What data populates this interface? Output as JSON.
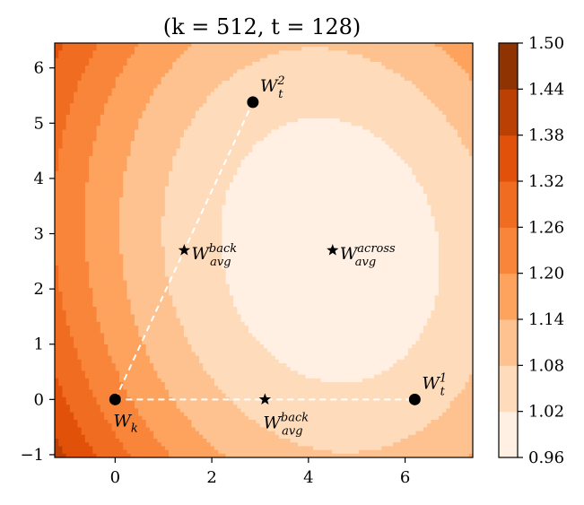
{
  "chart_data": {
    "type": "contour",
    "title": "(k = 512, t = 128)",
    "xlim": [
      -1.25,
      7.4
    ],
    "ylim": [
      -1.05,
      6.45
    ],
    "xticks": [
      0,
      2,
      4,
      6
    ],
    "yticks": [
      -1,
      0,
      1,
      2,
      3,
      4,
      5,
      6
    ],
    "colorbar": {
      "levels": [
        0.96,
        1.02,
        1.08,
        1.14,
        1.2,
        1.26,
        1.32,
        1.38,
        1.44,
        1.5
      ],
      "tick_labels": [
        "0.96",
        "1.02",
        "1.08",
        "1.14",
        "1.20",
        "1.26",
        "1.32",
        "1.38",
        "1.44",
        "1.50"
      ],
      "colors": [
        "#fff0e3",
        "#fedcbb",
        "#fdc28f",
        "#fda35e",
        "#f8853a",
        "#f06c21",
        "#e25109",
        "#ba4003",
        "#8f3303"
      ]
    },
    "minimum_center": [
      4.45,
      2.7
    ],
    "points": [
      {
        "id": "Wk",
        "x": 0,
        "y": 0,
        "marker": "circle",
        "label": "W",
        "sub": "k",
        "sup": ""
      },
      {
        "id": "Wt1",
        "x": 6.2,
        "y": 0,
        "marker": "circle",
        "label": "W",
        "sub": "t",
        "sup": "1"
      },
      {
        "id": "Wt2",
        "x": 2.85,
        "y": 5.38,
        "marker": "circle",
        "label": "W",
        "sub": "t",
        "sup": "2"
      },
      {
        "id": "Wavg_back_x",
        "x": 3.1,
        "y": 0,
        "marker": "star",
        "label": "W",
        "sub": "avg",
        "sup": "back"
      },
      {
        "id": "Wavg_back_diag",
        "x": 1.43,
        "y": 2.7,
        "marker": "star",
        "label": "W",
        "sub": "avg",
        "sup": "back"
      },
      {
        "id": "Wavg_across",
        "x": 4.5,
        "y": 2.7,
        "marker": "star",
        "label": "W",
        "sub": "avg",
        "sup": "across"
      }
    ],
    "dashed_lines": [
      {
        "from": "Wk",
        "to": "Wt1"
      },
      {
        "from": "Wk",
        "to": "Wt2"
      }
    ]
  }
}
